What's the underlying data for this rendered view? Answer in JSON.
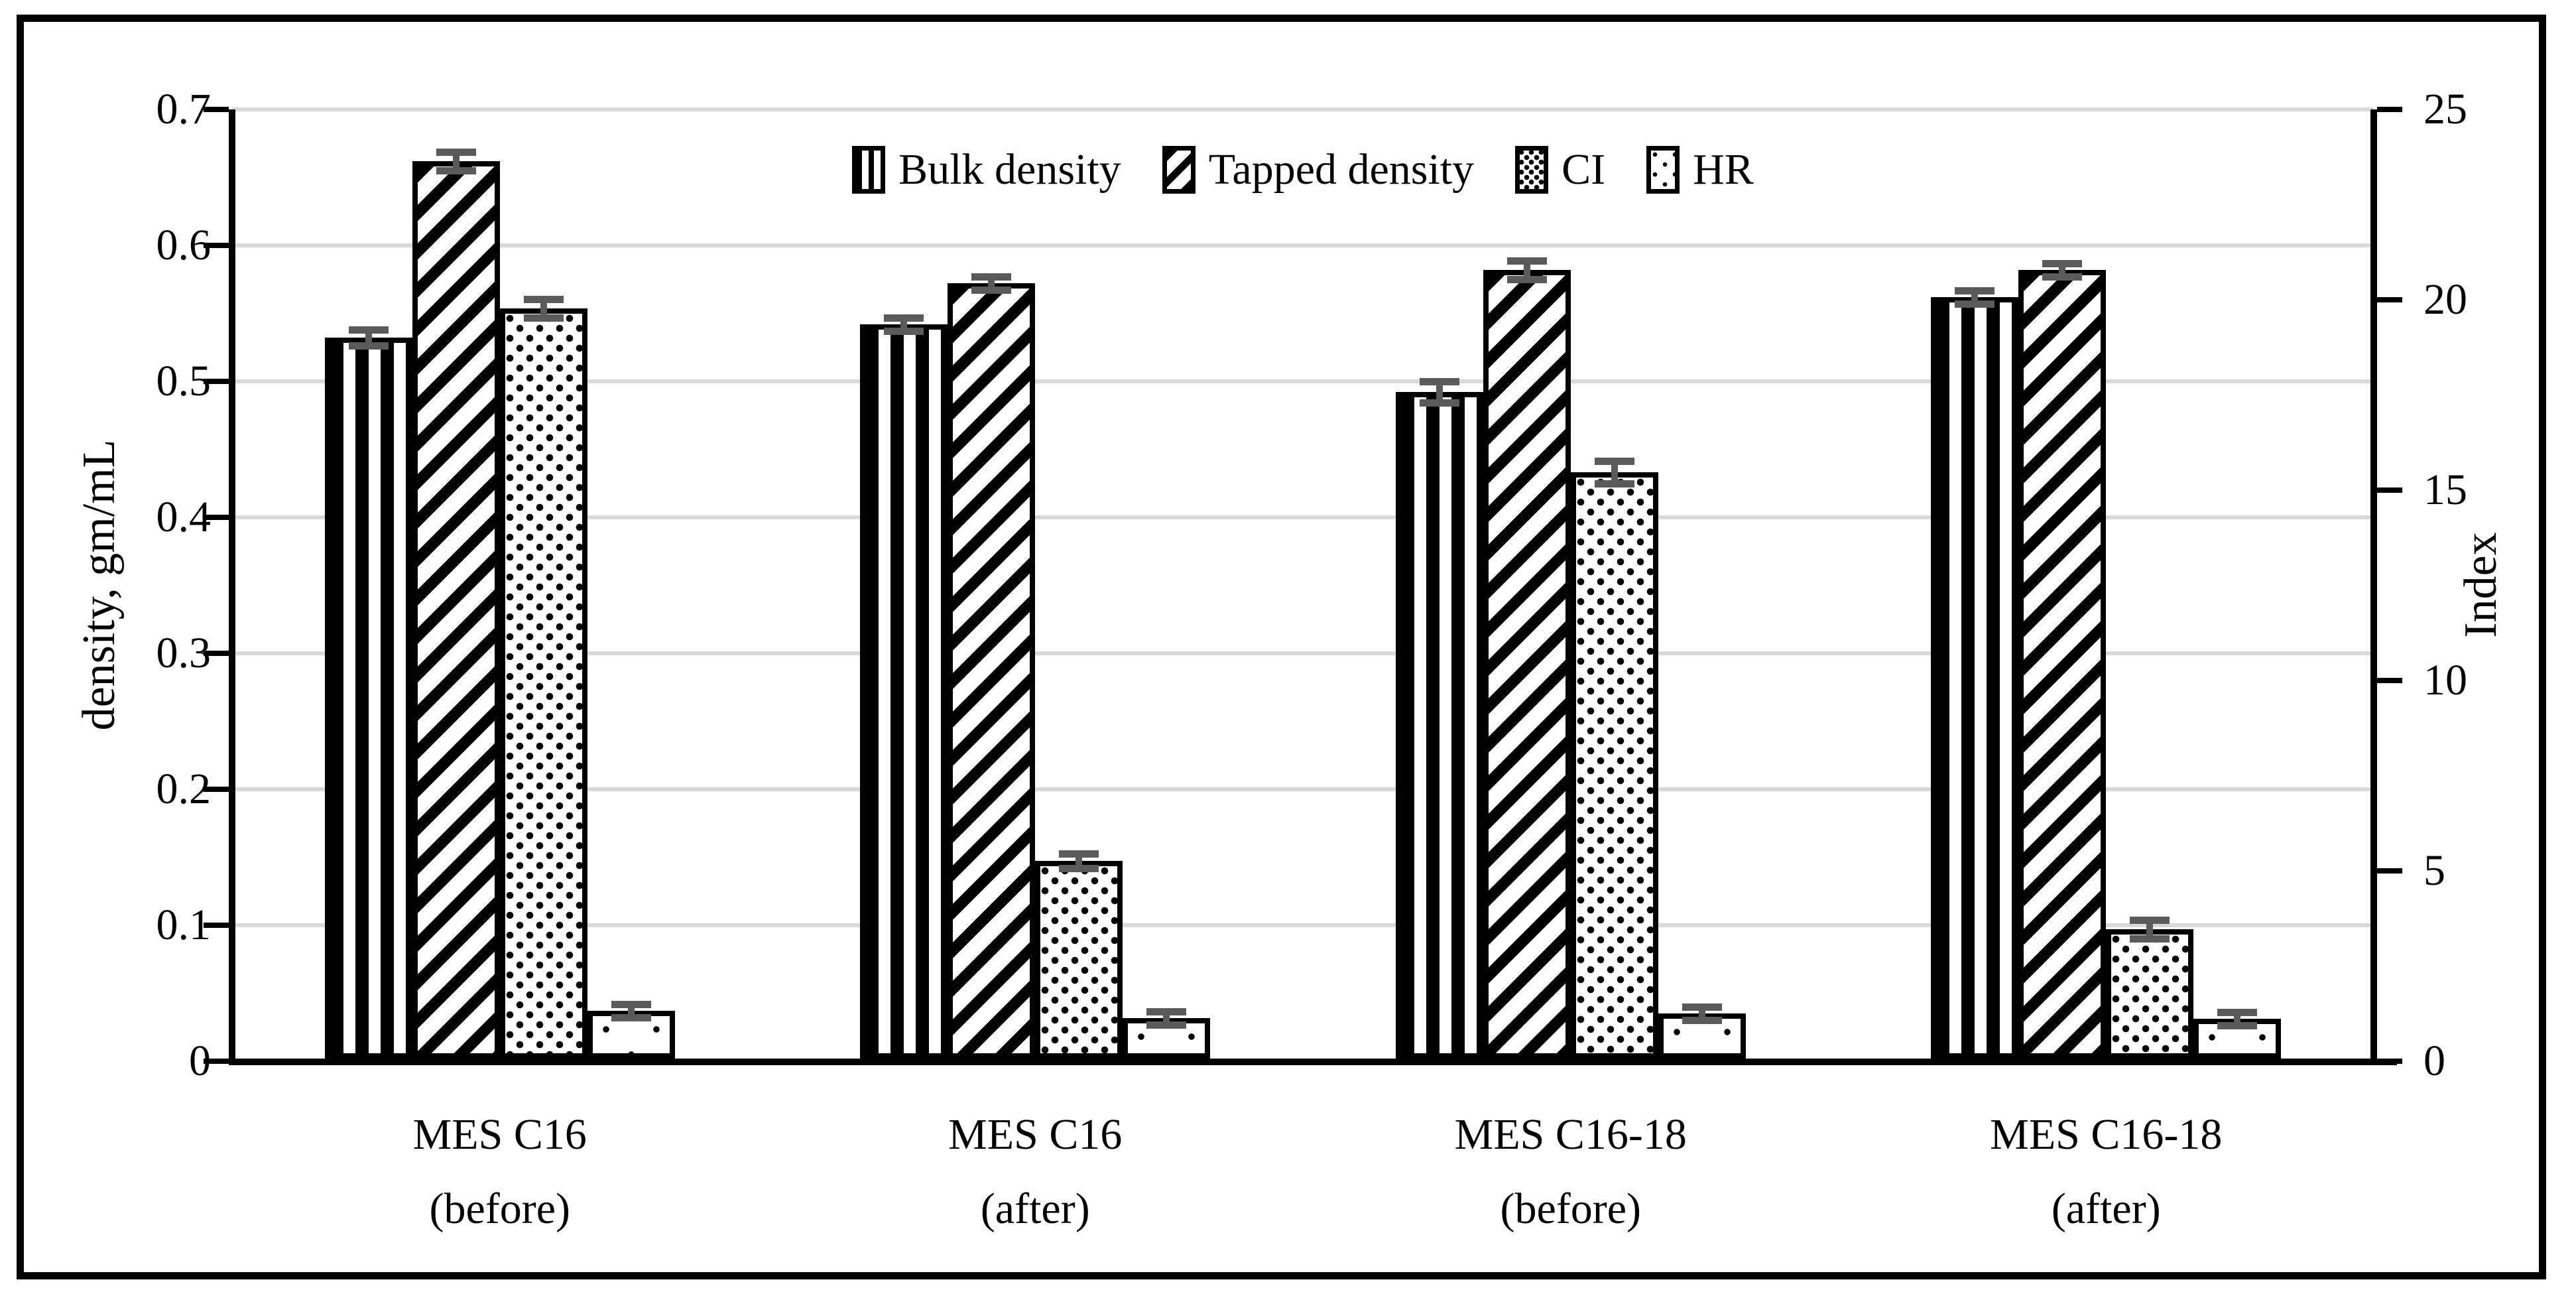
{
  "figure": {
    "background": "#ffffff",
    "border_color": "#000000"
  },
  "colors": {
    "bar_fill": "#ffffff",
    "bar_stroke": "#000000",
    "gridline": "#d9d9d9",
    "error_bar": "#5a5a5a",
    "axis": "#000000"
  },
  "chart_data": {
    "type": "bar",
    "title": "",
    "grid": true,
    "legend_position": "top-center",
    "categories": [
      {
        "line1": "MES C16",
        "line2": "(before)"
      },
      {
        "line1": "MES C16",
        "line2": "(after)"
      },
      {
        "line1": "MES C16-18",
        "line2": "(before)"
      },
      {
        "line1": "MES C16-18",
        "line2": "(after)"
      }
    ],
    "series": [
      {
        "name": "Bulk density",
        "axis": "left",
        "pattern": "vertical-stripes",
        "values": [
          0.53,
          0.54,
          0.49,
          0.56
        ],
        "errors": [
          0.006,
          0.005,
          0.008,
          0.005
        ]
      },
      {
        "name": "Tapped density",
        "axis": "left",
        "pattern": "diagonal-stripes",
        "values": [
          0.66,
          0.57,
          0.58,
          0.58
        ],
        "errors": [
          0.007,
          0.005,
          0.007,
          0.005
        ]
      },
      {
        "name": "CI",
        "axis": "right",
        "pattern": "dense-dots",
        "values": [
          19.7,
          5.2,
          15.4,
          3.4
        ],
        "errors": [
          0.25,
          0.2,
          0.3,
          0.25
        ]
      },
      {
        "name": "HR",
        "axis": "right",
        "pattern": "sparse-dots",
        "values": [
          1.25,
          1.06,
          1.18,
          1.05
        ],
        "errors": [
          0.08,
          0.05,
          0.07,
          0.05
        ]
      }
    ],
    "left_axis": {
      "label": "density, gm/mL",
      "min": 0,
      "max": 0.7,
      "tick_step": 0.1,
      "ticks": [
        "0.7",
        "0.6",
        "0.5",
        "0.4",
        "0.3",
        "0.2",
        "0.1",
        "0"
      ]
    },
    "right_axis": {
      "label": "Index",
      "min": 0,
      "max": 25,
      "tick_step": 5,
      "ticks": [
        "25",
        "20",
        "15",
        "10",
        "5",
        "0"
      ]
    }
  }
}
